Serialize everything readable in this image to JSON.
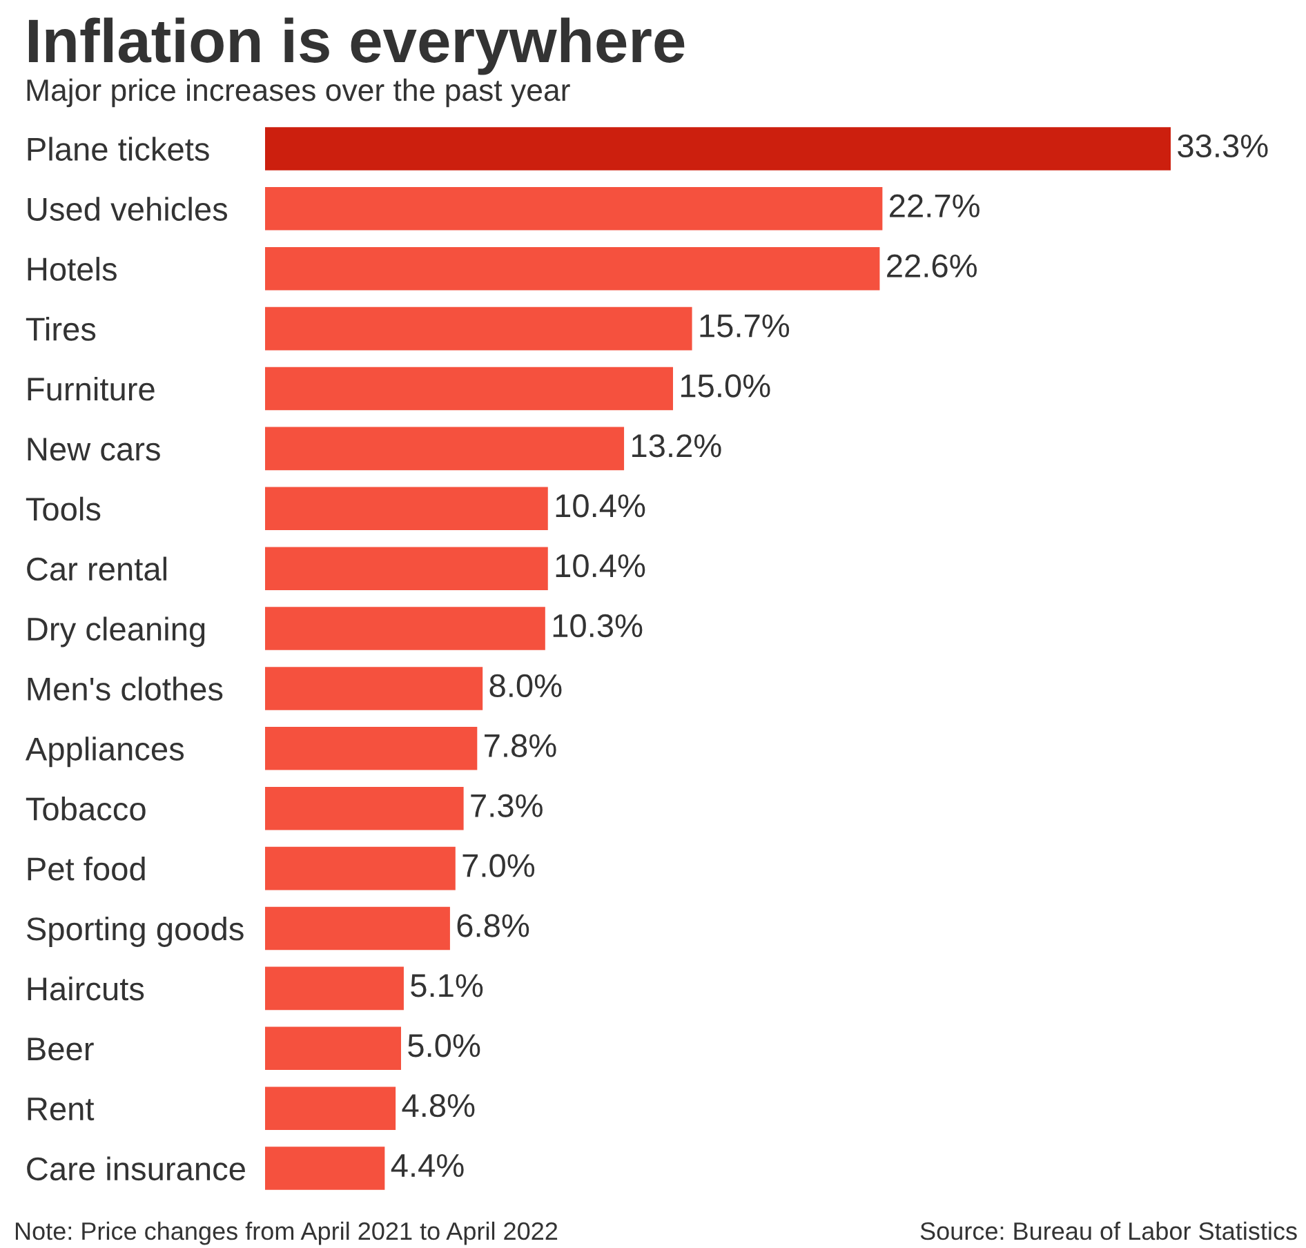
{
  "chart_data": {
    "type": "bar",
    "orientation": "horizontal",
    "title": "Inflation is everywhere",
    "subtitle": "Major price increases over the past year",
    "categories": [
      "Plane tickets",
      "Used vehicles",
      "Hotels",
      "Tires",
      "Furniture",
      "New cars",
      "Tools",
      "Car rental",
      "Dry cleaning",
      "Men's clothes",
      "Appliances",
      "Tobacco",
      "Pet food",
      "Sporting goods",
      "Haircuts",
      "Beer",
      "Rent",
      "Care insurance"
    ],
    "values": [
      33.3,
      22.7,
      22.6,
      15.7,
      15.0,
      13.2,
      10.4,
      10.4,
      10.3,
      8.0,
      7.8,
      7.3,
      7.0,
      6.8,
      5.1,
      5.0,
      4.8,
      4.4
    ],
    "value_labels": [
      "33.3%",
      "22.7%",
      "22.6%",
      "15.7%",
      "15.0%",
      "13.2%",
      "10.4%",
      "10.4%",
      "10.3%",
      "8.0%",
      "7.8%",
      "7.3%",
      "7.0%",
      "6.8%",
      "5.1%",
      "5.0%",
      "4.8%",
      "4.4%"
    ],
    "colors": [
      "#cc1f0e",
      "#f5513e",
      "#f5513e",
      "#f5513e",
      "#f5513e",
      "#f5513e",
      "#f5513e",
      "#f5513e",
      "#f5513e",
      "#f5513e",
      "#f5513e",
      "#f5513e",
      "#f5513e",
      "#f5513e",
      "#f5513e",
      "#f5513e",
      "#f5513e",
      "#f5513e"
    ],
    "grid": false,
    "legend": false,
    "annotations": [
      "Note: Price changes from April 2021 to April 2022",
      "Source: Bureau of Labor Statistics"
    ]
  }
}
